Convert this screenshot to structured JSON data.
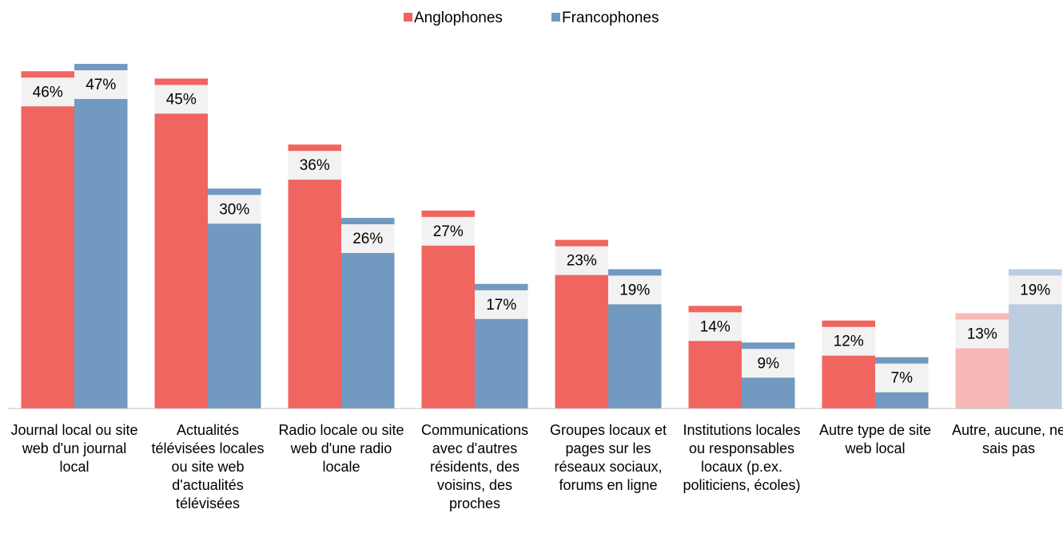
{
  "chart_data": {
    "type": "bar",
    "categories": [
      "Journal local ou site web d'un journal local",
      "Actualités télévisées locales ou site web d'actualités télévisées",
      "Radio locale ou site web d'une radio locale",
      "Communications avec d'autres résidents, des voisins, des proches",
      "Groupes locaux et pages sur les réseaux sociaux, forums en ligne",
      "Institutions locales ou responsables locaux (p.ex. politiciens, écoles)",
      "Autre type de site web local",
      "Autre, aucune, ne sais pas"
    ],
    "series": [
      {
        "name": "Anglophones",
        "color": "#f06560",
        "colors": [
          "#f06560",
          "#f06560",
          "#f06560",
          "#f06560",
          "#f06560",
          "#f06560",
          "#f06560",
          "#f7b9b7"
        ],
        "values": [
          46,
          45,
          36,
          27,
          23,
          14,
          12,
          13
        ],
        "value_labels": [
          "46%",
          "45%",
          "36%",
          "27%",
          "23%",
          "14%",
          "12%",
          "13%"
        ]
      },
      {
        "name": "Francophones",
        "color": "#7299c0",
        "colors": [
          "#7299c0",
          "#7299c0",
          "#7299c0",
          "#7299c0",
          "#7299c0",
          "#7299c0",
          "#7299c0",
          "#bccde0"
        ],
        "values": [
          47,
          30,
          26,
          17,
          19,
          9,
          7,
          19
        ],
        "value_labels": [
          "47%",
          "30%",
          "26%",
          "17%",
          "19%",
          "9%",
          "7%",
          "19%"
        ]
      }
    ],
    "ylim": [
      0,
      50
    ],
    "legend": "top"
  }
}
